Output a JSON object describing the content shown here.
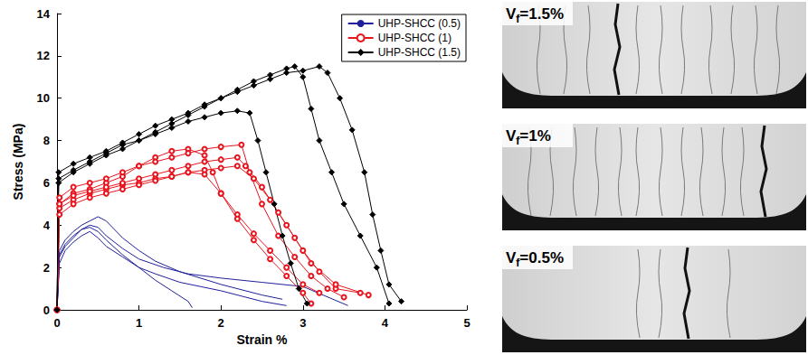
{
  "chart_data": {
    "type": "line",
    "x_label": "Strain %",
    "y_label": "Stress (MPa)",
    "xlim": [
      0,
      5
    ],
    "xticks": [
      0,
      1,
      2,
      3,
      4,
      5
    ],
    "ylim": [
      0,
      14
    ],
    "yticks": [
      0,
      2,
      4,
      6,
      8,
      10,
      12,
      14
    ],
    "grid": false,
    "legend": "upper right",
    "series": [
      {
        "name": "UHP-SHCC (0.5)",
        "color": "#1f1f9a",
        "marker": "none",
        "line_style": "solid",
        "curves": [
          {
            "x": [
              0,
              0.03,
              0.1,
              0.2,
              0.3,
              0.4,
              0.5,
              0.6,
              0.8,
              1.0,
              1.2,
              1.4,
              1.6,
              1.65
            ],
            "values": [
              0,
              2.6,
              3.1,
              3.5,
              3.8,
              3.9,
              3.7,
              3.3,
              2.6,
              2.0,
              1.4,
              0.9,
              0.4,
              0.1
            ]
          },
          {
            "x": [
              0,
              0.03,
              0.1,
              0.2,
              0.3,
              0.4,
              0.5,
              0.6,
              0.7,
              0.8,
              1.0,
              1.2,
              1.5,
              2.0,
              2.5,
              2.75
            ],
            "values": [
              0,
              2.8,
              3.3,
              3.7,
              4.0,
              4.2,
              4.4,
              4.2,
              3.8,
              3.4,
              2.8,
              2.3,
              1.8,
              1.2,
              0.7,
              0.5
            ]
          },
          {
            "x": [
              0,
              0.03,
              0.1,
              0.2,
              0.3,
              0.4,
              0.5,
              0.6,
              0.8,
              1.0,
              1.3,
              1.6,
              2.0,
              2.5,
              3.0,
              3.55
            ],
            "values": [
              0,
              2.5,
              3.0,
              3.4,
              3.8,
              4.0,
              3.9,
              3.5,
              2.9,
              2.4,
              2.0,
              1.7,
              1.5,
              1.3,
              1.1,
              0.2
            ]
          },
          {
            "x": [
              0,
              0.03,
              0.1,
              0.2,
              0.3,
              0.4,
              0.5,
              0.6,
              0.8,
              1.0,
              1.2,
              1.5,
              2.0,
              2.5,
              2.8
            ],
            "values": [
              0,
              2.2,
              2.8,
              3.2,
              3.5,
              3.7,
              3.4,
              3.0,
              2.5,
              2.0,
              1.7,
              1.3,
              0.9,
              0.4,
              0.2
            ]
          }
        ]
      },
      {
        "name": "UHP-SHCC (1)",
        "color": "#e8141e",
        "marker": "circle-open",
        "line_style": "solid",
        "curves": [
          {
            "x": [
              0,
              0.03,
              0.2,
              0.4,
              0.6,
              0.8,
              1.0,
              1.2,
              1.4,
              1.6,
              1.8,
              1.9,
              2.0,
              2.2,
              2.4,
              2.6,
              2.8,
              3.0,
              3.2
            ],
            "values": [
              0,
              5.0,
              5.5,
              5.7,
              6.0,
              6.3,
              6.8,
              7.2,
              7.5,
              7.6,
              7.3,
              6.5,
              5.5,
              4.5,
              3.6,
              2.8,
              2.0,
              1.2,
              0.8
            ]
          },
          {
            "x": [
              0,
              0.03,
              0.2,
              0.4,
              0.6,
              0.8,
              1.0,
              1.2,
              1.4,
              1.6,
              1.8,
              2.0,
              2.25,
              2.35,
              2.5,
              2.7,
              2.9,
              3.1,
              3.3,
              3.5
            ],
            "values": [
              0,
              5.3,
              5.8,
              6.0,
              6.2,
              6.5,
              6.8,
              7.0,
              7.2,
              7.4,
              7.6,
              7.7,
              7.8,
              6.5,
              5.0,
              3.5,
              2.5,
              1.6,
              1.0,
              0.6
            ]
          },
          {
            "x": [
              0,
              0.03,
              0.2,
              0.4,
              0.6,
              0.8,
              1.0,
              1.2,
              1.4,
              1.6,
              1.8,
              2.0,
              2.2,
              2.4,
              2.6,
              2.8,
              3.0,
              3.2,
              3.4,
              3.7
            ],
            "values": [
              0,
              4.8,
              5.2,
              5.5,
              5.7,
              5.9,
              6.0,
              6.2,
              6.3,
              6.5,
              6.6,
              6.7,
              6.8,
              6.2,
              5.2,
              4.0,
              2.8,
              1.8,
              1.0,
              0.8
            ]
          },
          {
            "x": [
              0,
              0.03,
              0.2,
              0.4,
              0.6,
              0.8,
              1.0,
              1.2,
              1.4,
              1.6,
              1.8,
              2.0,
              2.2,
              2.4,
              2.6,
              2.8,
              3.0,
              3.1
            ],
            "values": [
              0,
              4.5,
              5.0,
              5.3,
              5.5,
              5.7,
              5.9,
              6.1,
              6.3,
              6.5,
              6.4,
              5.5,
              4.3,
              3.3,
              2.4,
              1.6,
              0.8,
              0.3
            ]
          },
          {
            "x": [
              0,
              0.03,
              0.2,
              0.4,
              0.6,
              0.8,
              1.0,
              1.2,
              1.4,
              1.6,
              1.8,
              2.0,
              2.2,
              2.3,
              2.5,
              2.7,
              2.9,
              3.1,
              3.4,
              3.8
            ],
            "values": [
              0,
              5.0,
              5.4,
              5.6,
              5.8,
              6.0,
              6.2,
              6.4,
              6.6,
              6.8,
              7.0,
              7.1,
              7.2,
              6.8,
              5.8,
              4.6,
              3.4,
              2.2,
              1.2,
              0.7
            ]
          }
        ]
      },
      {
        "name": "UHP-SHCC (1.5)",
        "color": "#000000",
        "marker": "diamond",
        "line_style": "solid",
        "curves": [
          {
            "x": [
              0,
              0.02,
              0.2,
              0.4,
              0.6,
              0.8,
              1.0,
              1.2,
              1.4,
              1.6,
              1.8,
              2.0,
              2.2,
              2.35,
              2.45,
              2.55,
              2.65,
              2.75,
              2.85,
              2.95,
              3.05
            ],
            "values": [
              0,
              6.2,
              6.6,
              7.0,
              7.4,
              7.8,
              8.0,
              8.3,
              8.6,
              8.9,
              9.1,
              9.3,
              9.4,
              9.3,
              8.0,
              6.5,
              5.0,
              3.5,
              2.2,
              1.0,
              0.3
            ]
          },
          {
            "x": [
              0,
              0.02,
              0.2,
              0.4,
              0.6,
              0.8,
              1.0,
              1.2,
              1.4,
              1.6,
              1.8,
              2.0,
              2.2,
              2.4,
              2.6,
              2.8,
              2.9,
              3.0,
              3.1,
              3.2,
              3.35,
              3.5,
              3.7,
              3.9,
              4.05
            ],
            "values": [
              0,
              6.0,
              6.5,
              6.9,
              7.3,
              7.6,
              8.0,
              8.4,
              8.8,
              9.2,
              9.6,
              10.0,
              10.4,
              10.8,
              11.1,
              11.4,
              11.5,
              11.0,
              9.5,
              8.0,
              6.5,
              5.0,
              3.5,
              2.0,
              0.3
            ]
          },
          {
            "x": [
              0,
              0.02,
              0.2,
              0.4,
              0.6,
              0.8,
              1.0,
              1.2,
              1.4,
              1.6,
              1.8,
              2.0,
              2.2,
              2.4,
              2.6,
              2.8,
              3.0,
              3.2,
              3.3,
              3.45,
              3.6,
              3.75,
              3.85,
              3.95,
              4.05,
              4.2
            ],
            "values": [
              0,
              6.5,
              6.9,
              7.2,
              7.5,
              7.9,
              8.3,
              8.7,
              9.0,
              9.3,
              9.7,
              10.0,
              10.3,
              10.6,
              10.9,
              11.2,
              11.3,
              11.5,
              11.2,
              10.0,
              8.5,
              6.5,
              4.5,
              2.8,
              1.2,
              0.4
            ]
          }
        ]
      }
    ]
  },
  "photos": [
    {
      "label": {
        "main": "V",
        "sub": "f",
        "rest": "=1.5%"
      }
    },
    {
      "label": {
        "main": "V",
        "sub": "f",
        "rest": "=1%"
      }
    },
    {
      "label": {
        "main": "V",
        "sub": "f",
        "rest": "=0.5%"
      }
    }
  ]
}
